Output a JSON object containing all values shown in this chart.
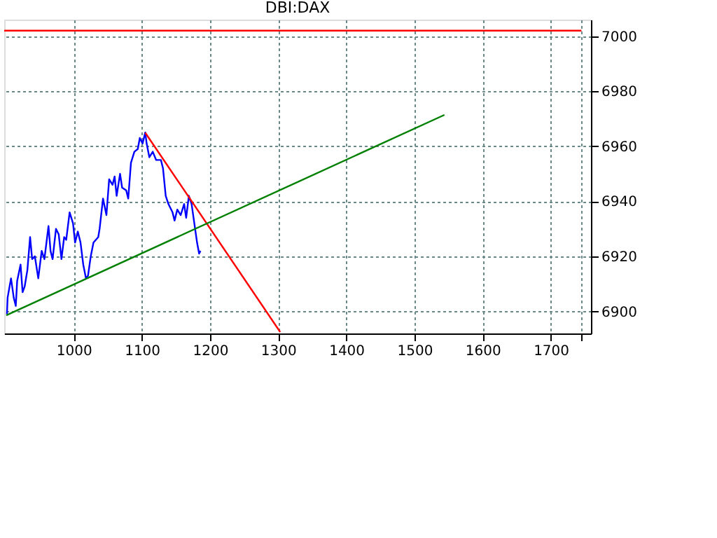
{
  "chart_data": {
    "type": "line",
    "title": "DBI:DAX",
    "xlim": [
      898,
      1759
    ],
    "xticks": [
      1000,
      1100,
      1200,
      1300,
      1400,
      1500,
      1600,
      1700,
      {
        "value": 1745,
        "label": null
      }
    ],
    "ylim": [
      6892,
      7006
    ],
    "yticks": [
      6900,
      6920,
      6940,
      6960,
      6980,
      7000
    ],
    "grid": true,
    "line_style": "solid",
    "series": [
      {
        "color": "#0000ff",
        "x": [
          902,
          903,
          908,
          912,
          915,
          917,
          922,
          925,
          928,
          932,
          936,
          939,
          943,
          948,
          953,
          957,
          963,
          966,
          969,
          974,
          978,
          982,
          986,
          989,
          994,
          999,
          1002,
          1006,
          1010,
          1014,
          1018,
          1021,
          1025,
          1029,
          1036,
          1038,
          1043,
          1048,
          1052,
          1057,
          1060,
          1063,
          1068,
          1071,
          1077,
          1080,
          1084,
          1089,
          1094,
          1097,
          1101,
          1105,
          1107,
          1111,
          1116,
          1121,
          1128,
          1131,
          1135,
          1139,
          1145,
          1148,
          1152,
          1157,
          1162,
          1165,
          1169,
          1173,
          1177,
          1181,
          1184,
          1186
        ],
        "values": [
          6899,
          6905,
          6912,
          6905,
          6902,
          6911,
          6917,
          6907,
          6909,
          6915,
          6927,
          6919,
          6920,
          6912,
          6922,
          6919,
          6931,
          6922,
          6919,
          6930,
          6928,
          6919,
          6927,
          6926,
          6936,
          6932,
          6925,
          6929,
          6925,
          6917,
          6912,
          6913,
          6920,
          6925,
          6927,
          6930,
          6941,
          6935,
          6948,
          6946,
          6949,
          6942,
          6950,
          6945,
          6944,
          6941,
          6954,
          6958,
          6959,
          6963,
          6961,
          6965,
          6961,
          6956,
          6958,
          6955,
          6955,
          6952,
          6942,
          6939,
          6936,
          6933,
          6937,
          6935,
          6939,
          6934,
          6942,
          6939,
          6932,
          6925,
          6921,
          6922
        ]
      },
      {
        "type": "line",
        "color": "#ff0000",
        "x": [
          1105,
          1303
        ],
        "values": [
          6964.9,
          6892.5
        ]
      },
      {
        "type": "line",
        "color": "#008000",
        "x": [
          901,
          1544
        ],
        "values": [
          6898.6,
          6971.4
        ]
      },
      {
        "type": "line",
        "color": "#ff0000",
        "x": [
          898,
          1745
        ],
        "values": [
          7002,
          7002
        ]
      }
    ]
  }
}
